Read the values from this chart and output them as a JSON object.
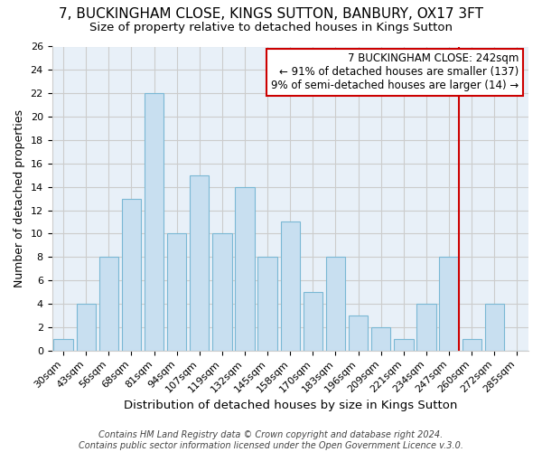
{
  "title": "7, BUCKINGHAM CLOSE, KINGS SUTTON, BANBURY, OX17 3FT",
  "subtitle": "Size of property relative to detached houses in Kings Sutton",
  "xlabel": "Distribution of detached houses by size in Kings Sutton",
  "ylabel": "Number of detached properties",
  "footer_line1": "Contains HM Land Registry data © Crown copyright and database right 2024.",
  "footer_line2": "Contains public sector information licensed under the Open Government Licence v.3.0.",
  "bar_labels": [
    "30sqm",
    "43sqm",
    "56sqm",
    "68sqm",
    "81sqm",
    "94sqm",
    "107sqm",
    "119sqm",
    "132sqm",
    "145sqm",
    "158sqm",
    "170sqm",
    "183sqm",
    "196sqm",
    "209sqm",
    "221sqm",
    "234sqm",
    "247sqm",
    "260sqm",
    "272sqm",
    "285sqm"
  ],
  "bar_values": [
    1,
    4,
    8,
    13,
    22,
    10,
    15,
    10,
    14,
    8,
    11,
    5,
    8,
    3,
    2,
    1,
    4,
    8,
    1,
    4,
    0
  ],
  "bar_color": "#c8dff0",
  "bar_edgecolor": "#7ab8d4",
  "reference_line_x_label": "247sqm",
  "reference_line_color": "#cc0000",
  "annotation_text_line1": "7 BUCKINGHAM CLOSE: 242sqm",
  "annotation_text_line2": "← 91% of detached houses are smaller (137)",
  "annotation_text_line3": "9% of semi-detached houses are larger (14) →",
  "annotation_box_edgecolor": "#cc0000",
  "ylim": [
    0,
    26
  ],
  "yticks": [
    0,
    2,
    4,
    6,
    8,
    10,
    12,
    14,
    16,
    18,
    20,
    22,
    24,
    26
  ],
  "grid_color": "#cccccc",
  "plot_bg_color": "#e8f0f8",
  "background_color": "#ffffff",
  "title_fontsize": 11,
  "subtitle_fontsize": 9.5,
  "xlabel_fontsize": 9.5,
  "ylabel_fontsize": 9,
  "tick_fontsize": 8,
  "annotation_fontsize": 8.5,
  "footer_fontsize": 7
}
